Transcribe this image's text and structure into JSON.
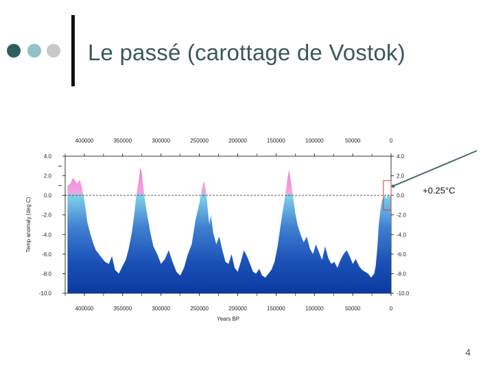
{
  "slide": {
    "title": "Le passé (carottage  de Vostok)",
    "page_number": "4"
  },
  "colors": {
    "title": "#3c5858",
    "bullet_dark": "#2f5f5e",
    "bullet_light": "#8fc3c7",
    "bullet_grey": "#c9c9c9",
    "cold": "#0a3aa0",
    "cool": "#7fd0ea",
    "warm": "#ee88d8",
    "hot": "#c0202e",
    "callout_line": "#4a6a6a"
  },
  "chart_data": {
    "type": "area",
    "title": "",
    "xlabel": "Years BP",
    "ylabel": "Temp anomaly (deg C)",
    "xlim": [
      425000,
      0
    ],
    "ylim": [
      -10,
      4
    ],
    "x_ticks": [
      "400000",
      "350000",
      "300000",
      "250000",
      "200000",
      "150000",
      "100000",
      "50000",
      "0"
    ],
    "x_tick_values": [
      400000,
      350000,
      300000,
      250000,
      200000,
      150000,
      100000,
      50000,
      0
    ],
    "y_ticks_left": [
      "4.0",
      "2.0",
      "0.0",
      "-2.0",
      "-4.0",
      "-6.0",
      "-8.0",
      "-10.0"
    ],
    "y_ticks_right": [
      "4.0",
      "2.0",
      "0.0",
      "-2.0",
      "-4.0",
      "-6.0",
      "-8.0",
      "-10.0"
    ],
    "y_tick_values": [
      4,
      2,
      0,
      -2,
      -4,
      -6,
      -8,
      -10
    ],
    "reference_line": 0,
    "grid": false,
    "series": [
      {
        "x": [
          422000,
          418000,
          415000,
          412000,
          409000,
          406000,
          403000,
          399000,
          396000,
          392000,
          388000,
          385000,
          381000,
          377000,
          373000,
          368000,
          364000,
          360000,
          355000,
          350000,
          346000,
          342000,
          338000,
          335000,
          332000,
          329000,
          327000,
          325000,
          323000,
          321000,
          318000,
          314000,
          310000,
          305000,
          300000,
          295000,
          290000,
          285000,
          280000,
          275000,
          270000,
          265000,
          260000,
          255000,
          250000,
          247000,
          244000,
          241000,
          239000,
          237000,
          235000,
          232000,
          228000,
          224000,
          220000,
          216000,
          212000,
          208000,
          204000,
          200000,
          196000,
          192000,
          188000,
          184000,
          180000,
          176000,
          172000,
          168000,
          164000,
          160000,
          156000,
          152000,
          148000,
          144000,
          140000,
          137000,
          135000,
          133000,
          131000,
          129000,
          127000,
          125000,
          122000,
          118000,
          114000,
          110000,
          106000,
          102000,
          98000,
          94000,
          90000,
          86000,
          82000,
          78000,
          74000,
          70000,
          66000,
          62000,
          58000,
          54000,
          50000,
          46000,
          42000,
          38000,
          34000,
          30000,
          26000,
          22000,
          20000,
          18000,
          16000,
          14000,
          12000,
          10000,
          8000,
          6000,
          4000,
          2000,
          0
        ],
        "y": [
          1.0,
          1.2,
          1.8,
          1.5,
          1.2,
          1.6,
          0.8,
          -1.0,
          -2.8,
          -4.0,
          -5.0,
          -5.6,
          -6.0,
          -6.4,
          -6.8,
          -7.0,
          -6.2,
          -7.6,
          -8.0,
          -7.2,
          -6.6,
          -5.4,
          -3.8,
          -2.0,
          0.2,
          1.5,
          2.8,
          2.2,
          0.8,
          -0.5,
          -2.0,
          -3.8,
          -5.2,
          -6.0,
          -7.0,
          -6.5,
          -5.6,
          -6.8,
          -7.8,
          -8.2,
          -7.4,
          -6.0,
          -5.0,
          -2.5,
          -0.8,
          0.5,
          1.5,
          0.2,
          -1.5,
          -3.0,
          -2.0,
          -3.8,
          -5.0,
          -4.2,
          -5.6,
          -6.8,
          -7.0,
          -6.0,
          -7.4,
          -7.8,
          -6.8,
          -5.6,
          -6.2,
          -7.0,
          -7.8,
          -8.0,
          -7.5,
          -8.2,
          -8.4,
          -8.0,
          -7.6,
          -6.8,
          -5.2,
          -3.0,
          -1.0,
          0.5,
          1.8,
          2.6,
          1.6,
          0.5,
          -0.6,
          -1.8,
          -3.0,
          -4.0,
          -4.8,
          -4.2,
          -5.4,
          -6.0,
          -5.0,
          -5.8,
          -6.6,
          -5.2,
          -6.4,
          -7.0,
          -6.8,
          -7.4,
          -6.6,
          -6.0,
          -5.6,
          -6.2,
          -7.0,
          -6.5,
          -7.2,
          -7.6,
          -7.8,
          -8.0,
          -8.4,
          -8.0,
          -7.2,
          -5.4,
          -3.0,
          -1.5,
          -0.5,
          -0.2,
          0.0,
          -0.4,
          0.2,
          -0.2,
          0.2
        ]
      }
    ],
    "highlight_box": {
      "x_range": [
        10000,
        0
      ],
      "y_range": [
        -1.5,
        1.5
      ]
    },
    "callout": "+0.25°C",
    "color_scale": "temperature gradient: dark blue (cold) to light cyan near 0, pink above 0, red at peaks"
  }
}
